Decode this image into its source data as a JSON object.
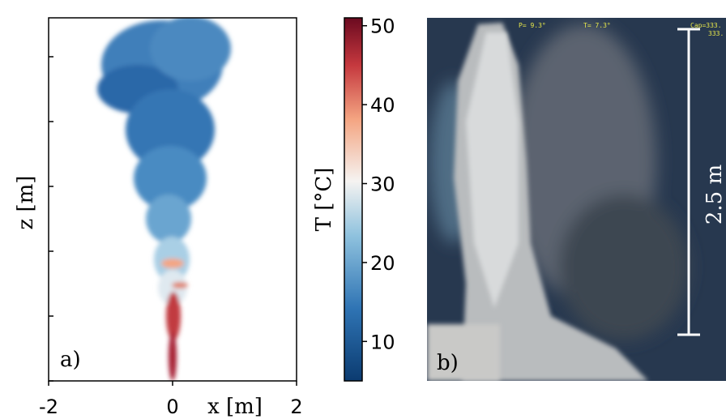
{
  "panel_a": {
    "label": "a)",
    "x_label": "x [m]",
    "y_label": "z [m]",
    "xlim": [
      -2,
      2
    ],
    "xticks": [
      -2,
      0,
      2
    ]
  },
  "colorbar": {
    "label": "T [°C]",
    "lim": [
      5,
      51
    ],
    "ticks": [
      10,
      20,
      30,
      40,
      50
    ]
  },
  "panel_b": {
    "label": "b)",
    "scale_label": "2.5 m",
    "overlay": [
      "P=  9.3°",
      "T=  7.3°",
      "Cap=333.",
      "333."
    ]
  }
}
